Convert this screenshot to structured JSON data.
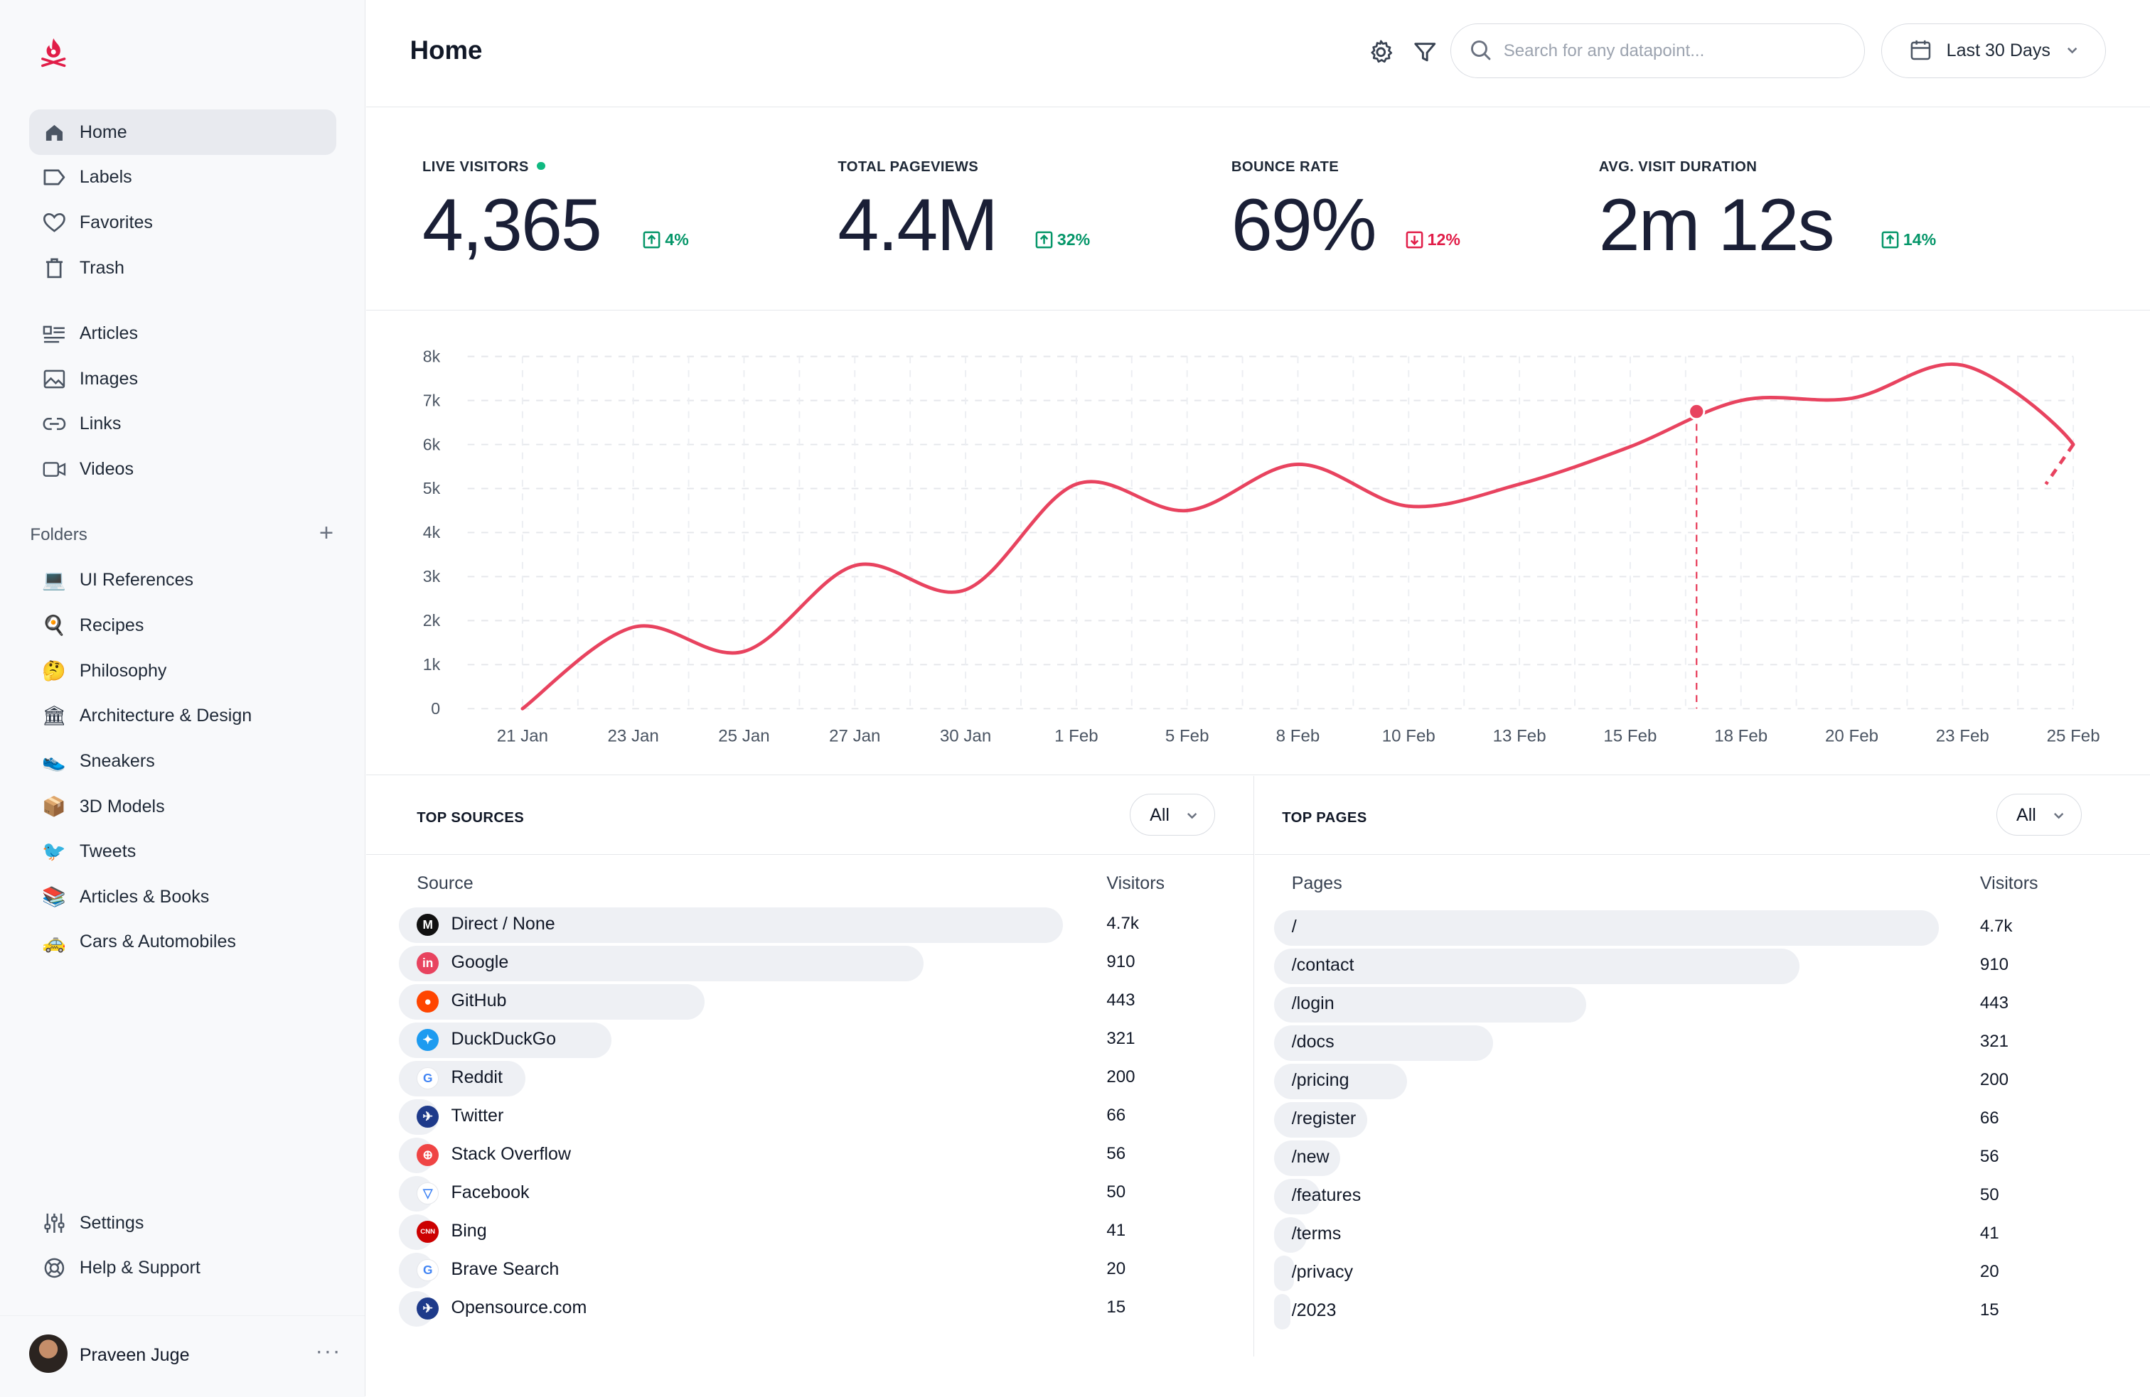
{
  "header": {
    "title": "Home",
    "search_placeholder": "Search for any datapoint...",
    "date_range": "Last 30 Days"
  },
  "sidebar": {
    "nav": [
      {
        "label": "Home",
        "icon": "home-icon",
        "active": true
      },
      {
        "label": "Labels",
        "icon": "label-icon"
      },
      {
        "label": "Favorites",
        "icon": "heart-icon"
      },
      {
        "label": "Trash",
        "icon": "trash-icon"
      }
    ],
    "content": [
      {
        "label": "Articles",
        "icon": "articles-icon"
      },
      {
        "label": "Images",
        "icon": "image-icon"
      },
      {
        "label": "Links",
        "icon": "link-icon"
      },
      {
        "label": "Videos",
        "icon": "video-icon"
      }
    ],
    "folders_label": "Folders",
    "folders": [
      {
        "label": "UI References",
        "emoji": "💻"
      },
      {
        "label": "Recipes",
        "emoji": "🍳"
      },
      {
        "label": "Philosophy",
        "emoji": "🤔"
      },
      {
        "label": "Architecture & Design",
        "emoji": "🏛"
      },
      {
        "label": "Sneakers",
        "emoji": "👟"
      },
      {
        "label": "3D Models",
        "emoji": "📦"
      },
      {
        "label": "Tweets",
        "emoji": "🐦"
      },
      {
        "label": "Articles & Books",
        "emoji": "📚"
      },
      {
        "label": "Cars & Automobiles",
        "emoji": "🚕"
      }
    ],
    "bottom": [
      {
        "label": "Settings",
        "icon": "sliders-icon"
      },
      {
        "label": "Help & Support",
        "icon": "lifebuoy-icon"
      }
    ],
    "user": {
      "name": "Praveen Juge"
    }
  },
  "stats": [
    {
      "label": "LIVE VISITORS",
      "value": "4,365",
      "change": "4%",
      "direction": "up",
      "live": true
    },
    {
      "label": "TOTAL PAGEVIEWS",
      "value": "4.4M",
      "change": "32%",
      "direction": "up"
    },
    {
      "label": "BOUNCE RATE",
      "value": "69%",
      "change": "12%",
      "direction": "down"
    },
    {
      "label": "AVG. VISIT DURATION",
      "value": "2m 12s",
      "change": "14%",
      "direction": "up"
    }
  ],
  "colors": {
    "accent": "#e8435f",
    "up": "#059669",
    "down": "#e11d48",
    "bar": "#eef0f4"
  },
  "chart_data": {
    "type": "line",
    "x": [
      "21 Jan",
      "23 Jan",
      "25 Jan",
      "27 Jan",
      "30 Jan",
      "1 Feb",
      "5 Feb",
      "8 Feb",
      "10 Feb",
      "13 Feb",
      "15 Feb",
      "18 Feb",
      "20 Feb",
      "23 Feb",
      "25 Feb"
    ],
    "yticks": [
      "0",
      "1k",
      "2k",
      "3k",
      "4k",
      "5k",
      "6k",
      "7k",
      "8k"
    ],
    "ylim": [
      0,
      8000
    ],
    "grid": true,
    "series": [
      {
        "values": [
          0,
          1850,
          1300,
          3250,
          2700,
          5100,
          4500,
          5550,
          4600,
          5100,
          5950,
          7000,
          7050,
          7800,
          6000
        ]
      }
    ],
    "highlight_point": {
      "y": 6750
    },
    "dashed_tail_end": 5100
  },
  "top_sources": {
    "title": "TOP SOURCES",
    "filter": "All",
    "col1": "Source",
    "col2": "Visitors",
    "rows": [
      {
        "name": "Direct / None",
        "value": "4.7k",
        "share": 1.0,
        "icon": "direct-icon",
        "bg": "#111111",
        "glyph": "M"
      },
      {
        "name": "Google",
        "value": "910",
        "share": 0.79,
        "icon": "google-icon",
        "bg": "#e8435f",
        "glyph": "in"
      },
      {
        "name": "GitHub",
        "value": "443",
        "share": 0.46,
        "icon": "github-icon",
        "bg": "#ff4500",
        "glyph": "●"
      },
      {
        "name": "DuckDuckGo",
        "value": "321",
        "share": 0.32,
        "icon": "duckduckgo-icon",
        "bg": "#1d9bf0",
        "glyph": "✦"
      },
      {
        "name": "Reddit",
        "value": "200",
        "share": 0.19,
        "icon": "reddit-icon",
        "bg": "#ffffff",
        "glyph": "G"
      },
      {
        "name": "Twitter",
        "value": "66",
        "share": 0.06,
        "icon": "twitter-icon",
        "bg": "#1e3a8a",
        "glyph": "✈"
      },
      {
        "name": "Stack Overflow",
        "value": "56",
        "share": 0.05,
        "icon": "stackoverflow-icon",
        "bg": "#ef4444",
        "glyph": "⊕"
      },
      {
        "name": "Facebook",
        "value": "50",
        "share": 0.04,
        "icon": "facebook-icon",
        "bg": "#ffffff",
        "glyph": "▽"
      },
      {
        "name": "Bing",
        "value": "41",
        "share": 0.035,
        "icon": "bing-icon",
        "bg": "#cc0000",
        "glyph": "CNN"
      },
      {
        "name": "Brave Search",
        "value": "20",
        "share": 0.02,
        "icon": "brave-icon",
        "bg": "#ffffff",
        "glyph": "G"
      },
      {
        "name": "Opensource.com",
        "value": "15",
        "share": 0.015,
        "icon": "opensource-icon",
        "bg": "#1e3a8a",
        "glyph": "✈"
      }
    ]
  },
  "top_pages": {
    "title": "TOP PAGES",
    "filter": "All",
    "col1": "Pages",
    "col2": "Visitors",
    "rows": [
      {
        "name": "/",
        "value": "4.7k",
        "share": 1.0
      },
      {
        "name": "/contact",
        "value": "910",
        "share": 0.79
      },
      {
        "name": "/login",
        "value": "443",
        "share": 0.47
      },
      {
        "name": "/docs",
        "value": "321",
        "share": 0.33
      },
      {
        "name": "/pricing",
        "value": "200",
        "share": 0.2
      },
      {
        "name": "/register",
        "value": "66",
        "share": 0.14
      },
      {
        "name": "/new",
        "value": "56",
        "share": 0.1
      },
      {
        "name": "/features",
        "value": "50",
        "share": 0.07
      },
      {
        "name": "/terms",
        "value": "41",
        "share": 0.05
      },
      {
        "name": "/privacy",
        "value": "20",
        "share": 0.03
      },
      {
        "name": "/2023",
        "value": "15",
        "share": 0.02
      }
    ]
  }
}
